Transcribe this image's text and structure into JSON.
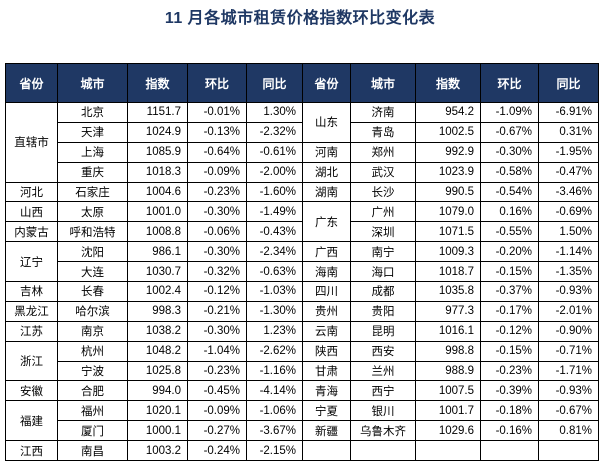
{
  "title": "11 月各城市租赁价格指数环比变化表",
  "colors": {
    "title_text": "#1F3864",
    "header_bg": "#1F3864",
    "header_text": "#FFFFFF",
    "body_text": "#000000",
    "border": "#000000",
    "background": "#FFFFFF"
  },
  "chart_data": {
    "type": "table",
    "title": "11 月各城市租赁价格指数环比变化表",
    "columns": [
      "省份",
      "城市",
      "指数",
      "环比",
      "同比"
    ],
    "layout": "two-halves-side-by-side, province cells merged vertically",
    "left_rows": [
      {
        "province": "直辖市",
        "span": 4,
        "city": "北京",
        "idx": "1151.7",
        "mom": "-0.01%",
        "yoy": "1.30%"
      },
      {
        "city": "天津",
        "idx": "1024.9",
        "mom": "-0.13%",
        "yoy": "-2.32%"
      },
      {
        "city": "上海",
        "idx": "1085.9",
        "mom": "-0.64%",
        "yoy": "-0.61%"
      },
      {
        "city": "重庆",
        "idx": "1018.3",
        "mom": "-0.09%",
        "yoy": "-2.00%"
      },
      {
        "province": "河北",
        "span": 1,
        "city": "石家庄",
        "idx": "1004.6",
        "mom": "-0.23%",
        "yoy": "-1.60%"
      },
      {
        "province": "山西",
        "span": 1,
        "city": "太原",
        "idx": "1001.0",
        "mom": "-0.30%",
        "yoy": "-1.49%"
      },
      {
        "province": "内蒙古",
        "span": 1,
        "city": "呼和浩特",
        "idx": "1008.8",
        "mom": "-0.06%",
        "yoy": "-0.43%"
      },
      {
        "province": "辽宁",
        "span": 2,
        "city": "沈阳",
        "idx": "986.1",
        "mom": "-0.30%",
        "yoy": "-2.34%"
      },
      {
        "city": "大连",
        "idx": "1030.7",
        "mom": "-0.32%",
        "yoy": "-0.63%"
      },
      {
        "province": "吉林",
        "span": 1,
        "city": "长春",
        "idx": "1002.4",
        "mom": "-0.12%",
        "yoy": "-1.03%"
      },
      {
        "province": "黑龙江",
        "span": 1,
        "city": "哈尔滨",
        "idx": "998.3",
        "mom": "-0.21%",
        "yoy": "-1.30%"
      },
      {
        "province": "江苏",
        "span": 1,
        "city": "南京",
        "idx": "1038.2",
        "mom": "-0.30%",
        "yoy": "1.23%"
      },
      {
        "province": "浙江",
        "span": 2,
        "city": "杭州",
        "idx": "1048.2",
        "mom": "-1.04%",
        "yoy": "-2.62%"
      },
      {
        "city": "宁波",
        "idx": "1025.8",
        "mom": "-0.23%",
        "yoy": "-1.16%"
      },
      {
        "province": "安徽",
        "span": 1,
        "city": "合肥",
        "idx": "994.0",
        "mom": "-0.45%",
        "yoy": "-4.14%"
      },
      {
        "province": "福建",
        "span": 2,
        "city": "福州",
        "idx": "1020.1",
        "mom": "-0.09%",
        "yoy": "-1.06%"
      },
      {
        "city": "厦门",
        "idx": "1000.1",
        "mom": "-0.27%",
        "yoy": "-3.67%"
      },
      {
        "province": "江西",
        "span": 1,
        "city": "南昌",
        "idx": "1003.2",
        "mom": "-0.24%",
        "yoy": "-2.15%"
      }
    ],
    "right_rows": [
      {
        "province": "山东",
        "span": 2,
        "city": "济南",
        "idx": "954.2",
        "mom": "-1.09%",
        "yoy": "-6.91%"
      },
      {
        "city": "青岛",
        "idx": "1002.5",
        "mom": "-0.67%",
        "yoy": "0.31%"
      },
      {
        "province": "河南",
        "span": 1,
        "city": "郑州",
        "idx": "992.9",
        "mom": "-0.30%",
        "yoy": "-1.95%"
      },
      {
        "province": "湖北",
        "span": 1,
        "city": "武汉",
        "idx": "1023.9",
        "mom": "-0.58%",
        "yoy": "-0.47%"
      },
      {
        "province": "湖南",
        "span": 1,
        "city": "长沙",
        "idx": "990.5",
        "mom": "-0.54%",
        "yoy": "-3.46%"
      },
      {
        "province": "广东",
        "span": 2,
        "city": "广州",
        "idx": "1079.0",
        "mom": "0.16%",
        "yoy": "-0.69%"
      },
      {
        "city": "深圳",
        "idx": "1071.5",
        "mom": "-0.55%",
        "yoy": "1.50%"
      },
      {
        "province": "广西",
        "span": 1,
        "city": "南宁",
        "idx": "1009.3",
        "mom": "-0.20%",
        "yoy": "-1.14%"
      },
      {
        "province": "海南",
        "span": 1,
        "city": "海口",
        "idx": "1018.7",
        "mom": "-0.15%",
        "yoy": "-1.35%"
      },
      {
        "province": "四川",
        "span": 1,
        "city": "成都",
        "idx": "1035.8",
        "mom": "-0.37%",
        "yoy": "-0.93%"
      },
      {
        "province": "贵州",
        "span": 1,
        "city": "贵阳",
        "idx": "977.3",
        "mom": "-0.17%",
        "yoy": "-2.01%"
      },
      {
        "province": "云南",
        "span": 1,
        "city": "昆明",
        "idx": "1016.1",
        "mom": "-0.12%",
        "yoy": "-0.90%"
      },
      {
        "province": "陕西",
        "span": 1,
        "city": "西安",
        "idx": "998.8",
        "mom": "-0.15%",
        "yoy": "-0.71%"
      },
      {
        "province": "甘肃",
        "span": 1,
        "city": "兰州",
        "idx": "988.9",
        "mom": "-0.23%",
        "yoy": "-1.71%"
      },
      {
        "province": "青海",
        "span": 1,
        "city": "西宁",
        "idx": "1007.5",
        "mom": "-0.39%",
        "yoy": "-0.93%"
      },
      {
        "province": "宁夏",
        "span": 1,
        "city": "银川",
        "idx": "1001.7",
        "mom": "-0.18%",
        "yoy": "-0.67%"
      },
      {
        "province": "新疆",
        "span": 1,
        "city": "乌鲁木齐",
        "idx": "1029.6",
        "mom": "-0.16%",
        "yoy": "0.81%"
      },
      {
        "province": "",
        "span": 1,
        "city": "",
        "idx": "",
        "mom": "",
        "yoy": ""
      }
    ]
  }
}
